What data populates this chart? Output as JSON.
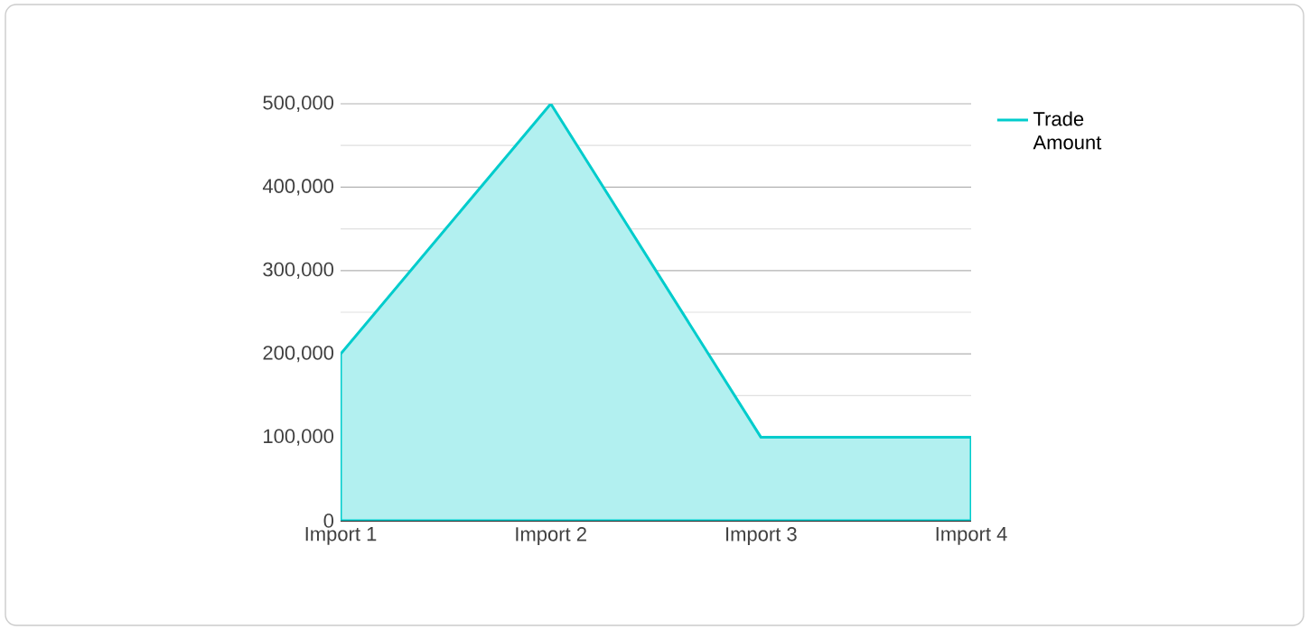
{
  "chart_data": {
    "type": "area",
    "categories": [
      "Import 1",
      "Import 2",
      "Import 3",
      "Import 4"
    ],
    "series": [
      {
        "name": "Trade Amount",
        "color": "#00cccc",
        "values": [
          200000,
          500000,
          100000,
          100000
        ]
      }
    ],
    "ylim": [
      0,
      500000
    ],
    "yticks": [
      0,
      {
        "value": 50000,
        "label": null
      },
      {
        "value": 100000,
        "label": "100,000"
      },
      {
        "value": 150000,
        "label": null
      },
      {
        "value": 200000,
        "label": "200,000"
      },
      {
        "value": 250000,
        "label": null
      },
      {
        "value": 300000,
        "label": "300,000"
      },
      {
        "value": 350000,
        "label": null
      },
      {
        "value": 400000,
        "label": "400,000"
      },
      {
        "value": 450000,
        "label": null
      },
      {
        "value": 500000,
        "label": "500,000"
      }
    ],
    "grid": "y",
    "legend": "top right"
  }
}
